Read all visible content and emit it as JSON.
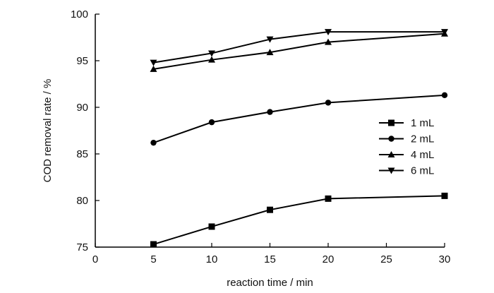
{
  "chart_data": {
    "type": "line",
    "title": "",
    "xlabel": "reaction time / min",
    "ylabel": "COD removal rate / %",
    "xlim": [
      0,
      30
    ],
    "ylim": [
      75,
      100
    ],
    "xticks": [
      0,
      5,
      10,
      15,
      20,
      25,
      30
    ],
    "yticks": [
      75,
      80,
      85,
      90,
      95,
      100
    ],
    "grid": false,
    "legend_position": "right",
    "x": [
      5,
      10,
      15,
      20,
      30
    ],
    "series": [
      {
        "name": "1 mL",
        "marker": "square",
        "values": [
          75.3,
          77.2,
          79.0,
          80.2,
          80.5
        ]
      },
      {
        "name": "2 mL",
        "marker": "circle",
        "values": [
          86.2,
          88.4,
          89.5,
          90.5,
          91.3
        ]
      },
      {
        "name": "4 mL",
        "marker": "triangle-up",
        "values": [
          94.1,
          95.1,
          95.9,
          97.0,
          97.9
        ]
      },
      {
        "name": "6 mL",
        "marker": "triangle-down",
        "values": [
          94.8,
          95.8,
          97.3,
          98.1,
          98.1
        ]
      }
    ],
    "colors": {
      "line": "#000000",
      "axis": "#000000"
    }
  }
}
